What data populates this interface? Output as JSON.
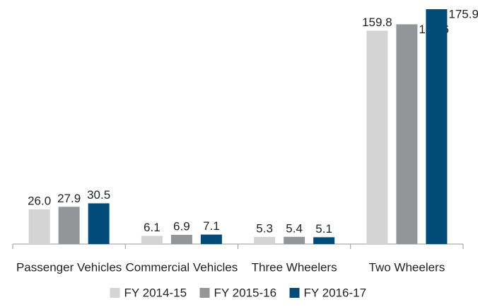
{
  "chart_data": {
    "type": "bar",
    "categories": [
      "Passenger Vehicles",
      "Commercial Vehicles",
      "Three Wheelers",
      "Two Wheelers"
    ],
    "series": [
      {
        "name": "FY 2014-15",
        "color": "#d4d4d4",
        "values": [
          26.0,
          6.1,
          5.3,
          159.8
        ],
        "value_labels": [
          "26.0",
          "6.1",
          "5.3",
          "159.8"
        ]
      },
      {
        "name": "FY 2015-16",
        "color": "#939598",
        "values": [
          27.9,
          6.9,
          5.4,
          164.6
        ],
        "value_labels": [
          "27.9",
          "6.9",
          "5.4",
          "164.6"
        ]
      },
      {
        "name": "FY 2016-17",
        "color": "#004b78",
        "values": [
          30.5,
          7.1,
          5.1,
          175.9
        ],
        "value_labels": [
          "30.5",
          "7.1",
          "5.1",
          "175.9"
        ]
      }
    ],
    "legend": "bottom"
  }
}
